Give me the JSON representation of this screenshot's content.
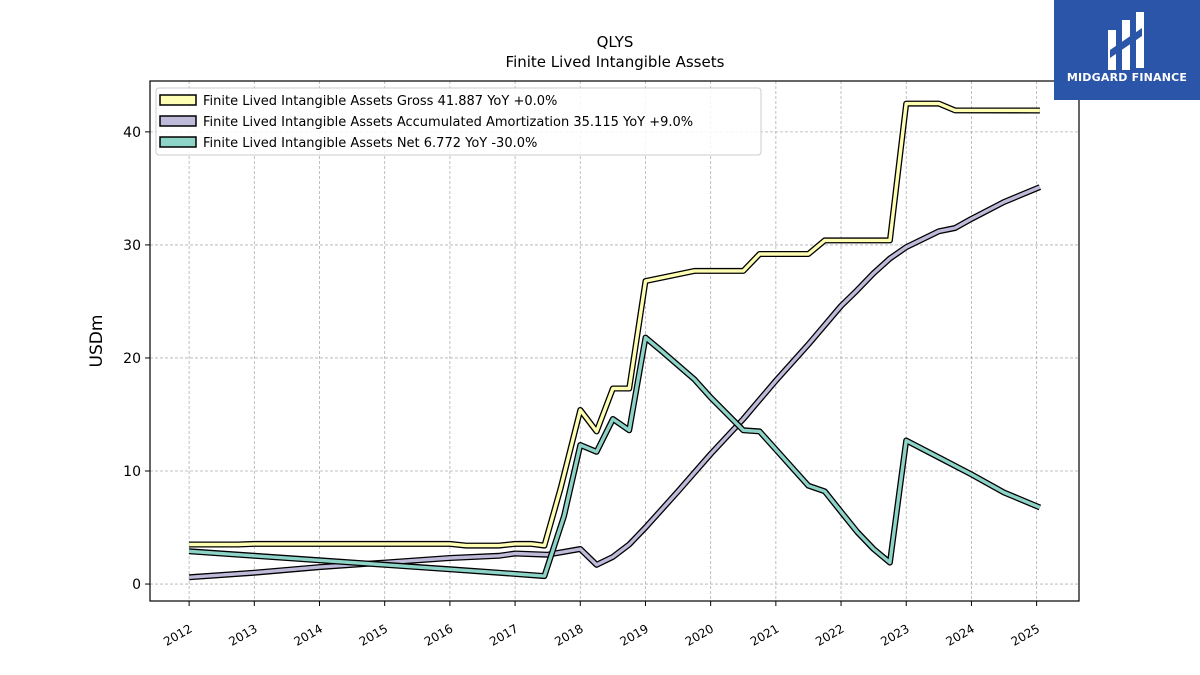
{
  "brand": {
    "name": "MIDGARD FINANCE",
    "color": "#2a55a8"
  },
  "chart_data": {
    "type": "line",
    "title": "QLYS",
    "subtitle": "Finite Lived Intangible Assets",
    "xlabel": "",
    "ylabel": "USDm",
    "xlim": [
      2011.4,
      2025.65
    ],
    "ylim": [
      -1.5,
      44.5
    ],
    "x_ticks": [
      "2012",
      "2013",
      "2014",
      "2015",
      "2016",
      "2017",
      "2018",
      "2019",
      "2020",
      "2021",
      "2022",
      "2023",
      "2024",
      "2025"
    ],
    "y_ticks": [
      0,
      10,
      20,
      30,
      40
    ],
    "grid": true,
    "legend_position": "top-left",
    "series": [
      {
        "name": "Finite Lived Intangible Assets Gross",
        "legend_label": "Finite Lived Intangible Assets Gross  41.887 YoY +0.0%",
        "color": "#ffffb3",
        "points": [
          [
            2012.0,
            3.5
          ],
          [
            2012.75,
            3.5
          ],
          [
            2013.0,
            3.55
          ],
          [
            2013.5,
            3.55
          ],
          [
            2014.0,
            3.55
          ],
          [
            2015.0,
            3.55
          ],
          [
            2016.0,
            3.55
          ],
          [
            2016.25,
            3.4
          ],
          [
            2016.75,
            3.4
          ],
          [
            2017.0,
            3.55
          ],
          [
            2017.25,
            3.55
          ],
          [
            2017.45,
            3.4
          ],
          [
            2017.7,
            8.5
          ],
          [
            2018.0,
            15.4
          ],
          [
            2018.25,
            13.5
          ],
          [
            2018.5,
            17.3
          ],
          [
            2018.75,
            17.3
          ],
          [
            2019.0,
            26.8
          ],
          [
            2019.75,
            27.7
          ],
          [
            2020.5,
            27.7
          ],
          [
            2020.75,
            29.2
          ],
          [
            2021.5,
            29.2
          ],
          [
            2021.75,
            30.4
          ],
          [
            2022.75,
            30.4
          ],
          [
            2023.0,
            42.5
          ],
          [
            2023.5,
            42.5
          ],
          [
            2023.75,
            41.9
          ],
          [
            2025.05,
            41.887
          ]
        ]
      },
      {
        "name": "Finite Lived Intangible Assets Accumulated Amortization",
        "legend_label": "Finite Lived Intangible Assets Accumulated Amortization  35.115 YoY +9.0%",
        "color": "#bebada",
        "points": [
          [
            2012.0,
            0.6
          ],
          [
            2013.0,
            1.0
          ],
          [
            2014.0,
            1.5
          ],
          [
            2015.0,
            1.9
          ],
          [
            2016.0,
            2.3
          ],
          [
            2016.75,
            2.5
          ],
          [
            2017.0,
            2.7
          ],
          [
            2017.5,
            2.6
          ],
          [
            2018.0,
            3.1
          ],
          [
            2018.25,
            1.7
          ],
          [
            2018.5,
            2.4
          ],
          [
            2018.75,
            3.5
          ],
          [
            2019.0,
            5.0
          ],
          [
            2019.5,
            8.2
          ],
          [
            2020.0,
            11.5
          ],
          [
            2020.5,
            14.6
          ],
          [
            2021.0,
            18.0
          ],
          [
            2021.5,
            21.2
          ],
          [
            2022.0,
            24.6
          ],
          [
            2022.25,
            26.0
          ],
          [
            2022.5,
            27.5
          ],
          [
            2022.75,
            28.8
          ],
          [
            2023.0,
            29.8
          ],
          [
            2023.5,
            31.2
          ],
          [
            2023.75,
            31.5
          ],
          [
            2024.0,
            32.3
          ],
          [
            2024.5,
            33.8
          ],
          [
            2025.05,
            35.115
          ]
        ]
      },
      {
        "name": "Finite Lived Intangible Assets Net",
        "legend_label": "Finite Lived Intangible Assets Net  6.772 YoY -30.0%",
        "color": "#8dd3c7",
        "points": [
          [
            2012.0,
            2.9
          ],
          [
            2013.0,
            2.5
          ],
          [
            2014.0,
            2.1
          ],
          [
            2015.0,
            1.7
          ],
          [
            2016.0,
            1.3
          ],
          [
            2016.75,
            1.0
          ],
          [
            2017.45,
            0.7
          ],
          [
            2017.75,
            6.0
          ],
          [
            2018.0,
            12.3
          ],
          [
            2018.25,
            11.7
          ],
          [
            2018.5,
            14.6
          ],
          [
            2018.75,
            13.6
          ],
          [
            2019.0,
            21.8
          ],
          [
            2019.25,
            20.6
          ],
          [
            2019.75,
            18.1
          ],
          [
            2020.0,
            16.5
          ],
          [
            2020.5,
            13.6
          ],
          [
            2020.75,
            13.5
          ],
          [
            2021.5,
            8.7
          ],
          [
            2021.75,
            8.2
          ],
          [
            2022.0,
            6.4
          ],
          [
            2022.25,
            4.6
          ],
          [
            2022.5,
            3.1
          ],
          [
            2022.75,
            1.9
          ],
          [
            2023.0,
            12.7
          ],
          [
            2023.5,
            11.2
          ],
          [
            2024.0,
            9.7
          ],
          [
            2024.5,
            8.1
          ],
          [
            2025.05,
            6.772
          ]
        ]
      }
    ]
  }
}
